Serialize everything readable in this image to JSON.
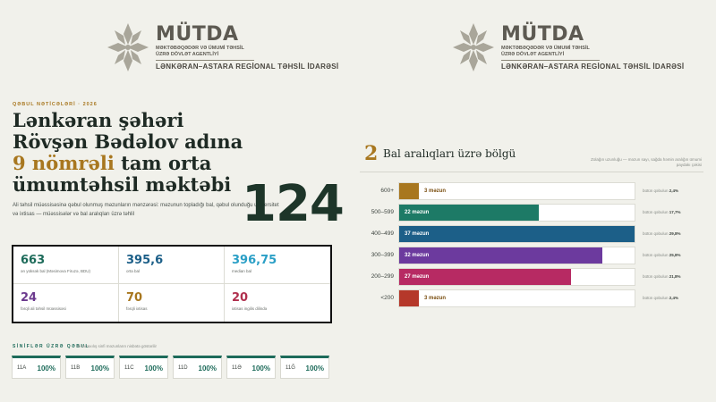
{
  "logo": {
    "title": "MÜTDA",
    "subtitle": "MƏKTƏBƏQƏDƏR VƏ ÜMUMİ TƏHSİL ÜZRƏ DÖVLƏT AGENTLİYİ",
    "region": "LƏNKƏRAN–ASTARA REGİONAL TƏHSİL İDARƏSİ"
  },
  "header": {
    "eyebrow": "QƏBUL NƏTİCƏLƏRİ · 2026",
    "title_line1": "Lənkəran şəhəri",
    "title_line2": "Rövşən Bədəlov adına",
    "title_accent": "9 nömrəli",
    "title_line3_rest": " tam orta",
    "title_line4": "ümumtəhsil məktəbi",
    "intro": "Ali təhsil müəssisəsinə qəbul olunmuş məzunların mənzərəsi: məzunun topladığı bal, qəbul olunduğu universitet və ixtisas — müəssisələr və bal aralıqları üzrə təhlil",
    "big_number": "124"
  },
  "stats": [
    {
      "value": "663",
      "label": "ən yüksək bal (Məsimova Firuzə, BDU)",
      "color": "#1d6b5a"
    },
    {
      "value": "395,6",
      "label": "orta bal",
      "color": "#1c5f88"
    },
    {
      "value": "396,75",
      "label": "median bal",
      "color": "#2a9fc6"
    },
    {
      "value": "24",
      "label": "fərqli ali təhsil müəssisəsi",
      "color": "#6c3a8e"
    },
    {
      "value": "70",
      "label": "fərqli ixtisas",
      "color": "#a8771f"
    },
    {
      "value": "20",
      "label": "ixtisas ingilis dilində",
      "color": "#b0304e"
    }
  ],
  "classes_section": {
    "title": "SİNİFLƏR ÜZRƏ QƏBUL",
    "note": "% buraxılış sinfi məzunların nisbətə göstərilir",
    "items": [
      {
        "name": "11A",
        "pct": "100%"
      },
      {
        "name": "11B",
        "pct": "100%"
      },
      {
        "name": "11C",
        "pct": "100%"
      },
      {
        "name": "11D",
        "pct": "100%"
      },
      {
        "name": "11Ə",
        "pct": "100%"
      },
      {
        "name": "11Ğ",
        "pct": "100%"
      }
    ]
  },
  "distribution": {
    "number": "2",
    "title": "Bal aralıqları üzrə bölgü",
    "note": "Zolağın uzunluğu — məzun sayı, sağda həmin aralığın ümumi paydakı çəkisi",
    "share_prefix": "bütün qəbulun",
    "rows": [
      {
        "range": "600+",
        "count": 3,
        "count_label": "3 məzun",
        "share": "2,4%",
        "color": "#a8771f"
      },
      {
        "range": "500–599",
        "count": 22,
        "count_label": "22 məzun",
        "share": "17,7%",
        "color": "#1d7a66"
      },
      {
        "range": "400–499",
        "count": 37,
        "count_label": "37 məzun",
        "share": "29,8%",
        "color": "#1c5f88"
      },
      {
        "range": "300–399",
        "count": 32,
        "count_label": "32 məzun",
        "share": "25,8%",
        "color": "#6c3a9e"
      },
      {
        "range": "200–299",
        "count": 27,
        "count_label": "27 məzun",
        "share": "21,8%",
        "color": "#b72a63"
      },
      {
        "range": "<200",
        "count": 3,
        "count_label": "3 məzun",
        "share": "2,4%",
        "color": "#b5382a"
      }
    ],
    "max_count": 37
  }
}
